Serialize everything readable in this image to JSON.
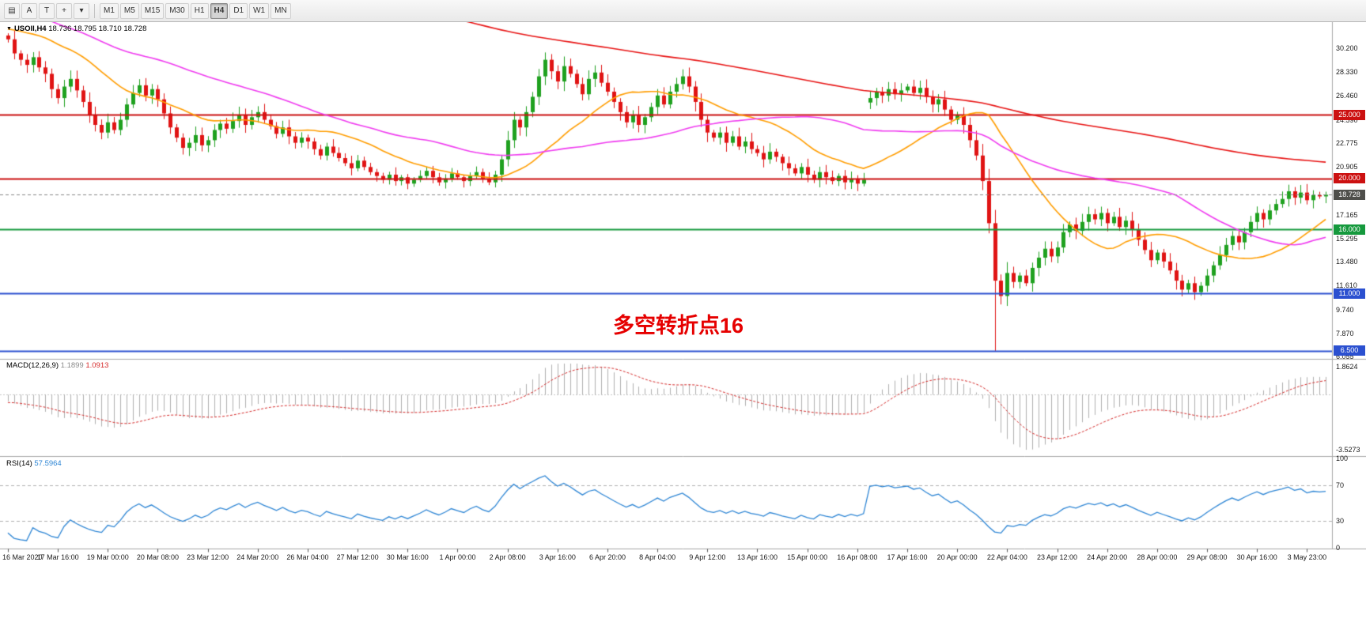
{
  "toolbar": {
    "tools": [
      {
        "name": "chart-grid-icon",
        "glyph": "▤"
      },
      {
        "name": "annotation-a-tool",
        "glyph": "A"
      },
      {
        "name": "text-tool",
        "glyph": "T"
      },
      {
        "name": "crosshair-tool",
        "glyph": "+"
      },
      {
        "name": "chart-type-dropdown-icon",
        "glyph": "▾"
      }
    ],
    "timeframes": [
      "M1",
      "M5",
      "M15",
      "M30",
      "H1",
      "H4",
      "D1",
      "W1",
      "MN"
    ],
    "active_timeframe": "H4"
  },
  "main_panel": {
    "collapse_glyph": "▼",
    "title": "USOIl,H4",
    "ohlc": "18.736 18.795 18.710 18.728"
  },
  "annotation": {
    "text": "多空转折点16",
    "color": "#e60000"
  },
  "indicators": {
    "macd": {
      "label": "MACD(12,26,9)",
      "value_main": "1.1899",
      "value_signal": "1.0913",
      "scale_max_label": "1.8624",
      "scale_min_label": "-3.5273",
      "scale_max": 1.8624,
      "scale_min": -3.5273,
      "fast": 12,
      "slow": 26,
      "signal": 9,
      "histogram_color": "#b0b0b0",
      "signal_color": "#d62b2b",
      "value_main_color": "#8a8a8a"
    },
    "rsi": {
      "label": "RSI(14)",
      "value": "57.5964",
      "period": 14,
      "levels": [
        70,
        30
      ],
      "scale_labels": [
        {
          "text": "100",
          "value": 100
        },
        {
          "text": "70",
          "value": 70
        },
        {
          "text": "30",
          "value": 30
        },
        {
          "text": "0",
          "value": 0
        }
      ],
      "line_color": "#2e86d5",
      "level_color": "#b0b0b0"
    }
  },
  "chart_data": {
    "type": "candlestick",
    "symbol": "USOIl",
    "timeframe": "H4",
    "price_min": 6.0,
    "price_max": 32.0,
    "up_color": "#1fa11f",
    "down_color": "#e01414",
    "first_open": 31.2,
    "gap_threshold": 5,
    "closes": [
      30.9,
      29.8,
      29.3,
      28.9,
      29.5,
      28.7,
      28.2,
      27.0,
      26.3,
      27.2,
      27.8,
      26.9,
      26.0,
      25.0,
      24.2,
      23.6,
      24.4,
      23.8,
      24.6,
      25.8,
      26.7,
      27.3,
      26.5,
      27.0,
      26.2,
      25.1,
      24.0,
      23.2,
      22.4,
      22.8,
      23.4,
      22.6,
      23.0,
      23.8,
      24.3,
      23.9,
      24.5,
      25.0,
      24.2,
      24.8,
      25.2,
      24.6,
      24.1,
      23.5,
      24.0,
      23.3,
      22.8,
      23.2,
      22.9,
      22.3,
      21.8,
      22.5,
      22.0,
      21.6,
      21.2,
      20.8,
      21.4,
      20.9,
      20.5,
      20.2,
      19.9,
      20.3,
      19.8,
      20.1,
      19.6,
      19.9,
      20.2,
      20.6,
      20.1,
      19.7,
      20.0,
      20.4,
      20.1,
      19.8,
      20.2,
      20.5,
      20.0,
      19.7,
      20.3,
      21.5,
      23.0,
      24.6,
      24.0,
      25.2,
      26.4,
      28.0,
      29.3,
      28.4,
      27.6,
      28.8,
      28.2,
      27.4,
      26.6,
      27.8,
      28.3,
      27.5,
      26.8,
      26.0,
      25.2,
      24.4,
      25.0,
      24.2,
      24.8,
      25.6,
      26.5,
      25.8,
      26.8,
      27.4,
      28.0,
      27.2,
      26.0,
      24.6,
      23.6,
      23.2,
      23.6,
      22.8,
      23.3,
      22.5,
      22.9,
      22.3,
      22.0,
      21.5,
      22.1,
      21.7,
      21.2,
      20.8,
      20.4,
      20.9,
      20.3,
      19.9,
      20.5,
      20.1,
      19.8,
      20.2,
      19.7,
      20.0,
      19.6,
      19.9,
      26.3,
      26.8,
      26.5,
      27.0,
      26.6,
      26.9,
      27.2,
      26.7,
      27.1,
      26.4,
      25.8,
      26.2,
      25.4,
      24.6,
      25.0,
      24.2,
      23.0,
      21.8,
      19.8,
      16.5,
      12.0,
      10.8,
      12.6,
      11.9,
      12.4,
      11.8,
      13.0,
      13.8,
      14.5,
      13.9,
      14.6,
      15.8,
      16.4,
      15.9,
      16.6,
      17.2,
      16.8,
      17.3,
      16.5,
      17.0,
      16.2,
      16.7,
      16.0,
      15.2,
      14.4,
      13.6,
      14.2,
      13.5,
      12.8,
      12.0,
      11.3,
      11.8,
      11.1,
      11.6,
      12.4,
      13.2,
      14.0,
      14.8,
      15.5,
      15.0,
      15.8,
      16.6,
      17.3,
      16.8,
      17.5,
      18.0,
      18.4,
      19.0,
      18.5,
      18.9,
      18.3,
      18.7,
      18.6,
      18.728
    ],
    "special_lows": {
      "158": 6.5
    },
    "seed_history": {
      "start": 52,
      "end": 30.6,
      "count": 200
    },
    "moving_averages": [
      {
        "name": "ma-fast",
        "period": 20,
        "color": "#ff9d00"
      },
      {
        "name": "ma-mid",
        "period": 50,
        "color": "#f03cf0"
      },
      {
        "name": "ma-slow",
        "period": 200,
        "color": "#e81414"
      }
    ],
    "horizontal_lines": [
      {
        "price": 25.0,
        "label": "25.000",
        "color": "#cc1111"
      },
      {
        "price": 20.0,
        "label": "20.000",
        "color": "#cc1111"
      },
      {
        "price": 16.0,
        "label": "16.000",
        "color": "#15993d"
      },
      {
        "price": 11.0,
        "label": "11.000",
        "color": "#2b50d0"
      },
      {
        "price": 6.5,
        "label": "6.500",
        "color": "#2b50d0"
      }
    ],
    "current_price": {
      "value": 18.728,
      "label": "18.728",
      "badge_color": "#4f4f4b"
    },
    "price_axis_labels": [
      "30.200",
      "28.330",
      "26.460",
      "24.590",
      "22.775",
      "20.905",
      "17.165",
      "15.295",
      "13.480",
      "11.610",
      "9.740",
      "7.870",
      "6.055"
    ],
    "time_labels": [
      "16 Mar 2020",
      "17 Mar 16:00",
      "19 Mar 00:00",
      "20 Mar 08:00",
      "23 Mar 12:00",
      "24 Mar 20:00",
      "26 Mar 04:00",
      "27 Mar 12:00",
      "30 Mar 16:00",
      "1 Apr 00:00",
      "2 Apr 08:00",
      "3 Apr 16:00",
      "6 Apr 20:00",
      "8 Apr 04:00",
      "9 Apr 12:00",
      "13 Apr 16:00",
      "15 Apr 00:00",
      "16 Apr 08:00",
      "17 Apr 16:00",
      "20 Apr 00:00",
      "22 Apr 04:00",
      "23 Apr 12:00",
      "24 Apr 20:00",
      "28 Apr 00:00",
      "29 Apr 08:00",
      "30 Apr 16:00",
      "3 May 23:00"
    ]
  }
}
